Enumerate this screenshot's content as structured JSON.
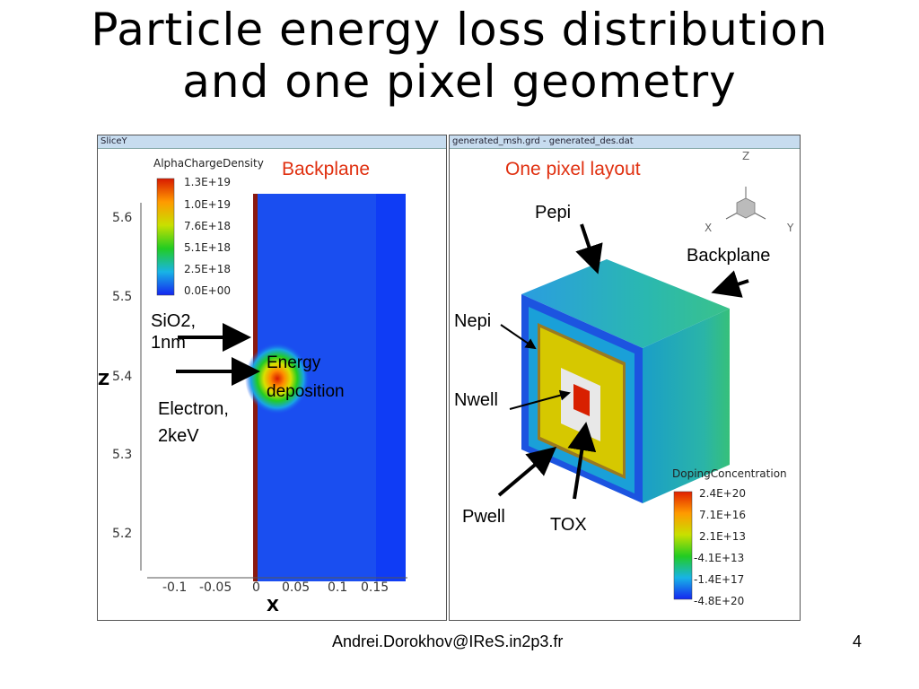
{
  "slide": {
    "title_line1": "Particle energy loss distribution",
    "title_line2": "and one pixel geometry",
    "footer_email": "Andrei.Dorokhov@IReS.in2p3.fr",
    "page_number": "4"
  },
  "left_panel": {
    "header": "SliceY",
    "legend_title": "AlphaChargeDensity",
    "legend_values": [
      "1.3E+19",
      "1.0E+19",
      "7.6E+18",
      "5.1E+18",
      "2.5E+18",
      "0.0E+00"
    ],
    "overlay_label": "Backplane",
    "y_axis_label": "Z",
    "x_axis_label": "X",
    "y_ticks": [
      "5.6",
      "5.5",
      "5.4",
      "5.3",
      "5.2"
    ],
    "x_ticks": [
      "-0.1",
      "-0.05",
      "0",
      "0.05",
      "0.1",
      "0.15"
    ],
    "annotations": {
      "sio2": "SiO2,",
      "sio2_thickness": "1nm",
      "energy": "Energy",
      "deposition": "deposition",
      "electron": "Electron,",
      "electron_energy": "2keV"
    }
  },
  "right_panel": {
    "header": "generated_msh.grd - generated_des.dat",
    "overlay_label": "One pixel layout",
    "axis_labels": {
      "z": "Z",
      "x": "X",
      "y": "Y"
    },
    "labels": {
      "pepi": "Pepi",
      "backplane": "Backplane",
      "nepi": "Nepi",
      "nwell": "Nwell",
      "pwell": "Pwell",
      "tox": "TOX"
    },
    "legend_title": "DopingConcentration",
    "legend_values": [
      "2.4E+20",
      "7.1E+16",
      "2.1E+13",
      "-4.1E+13",
      "-1.4E+17",
      "-4.8E+20"
    ]
  }
}
